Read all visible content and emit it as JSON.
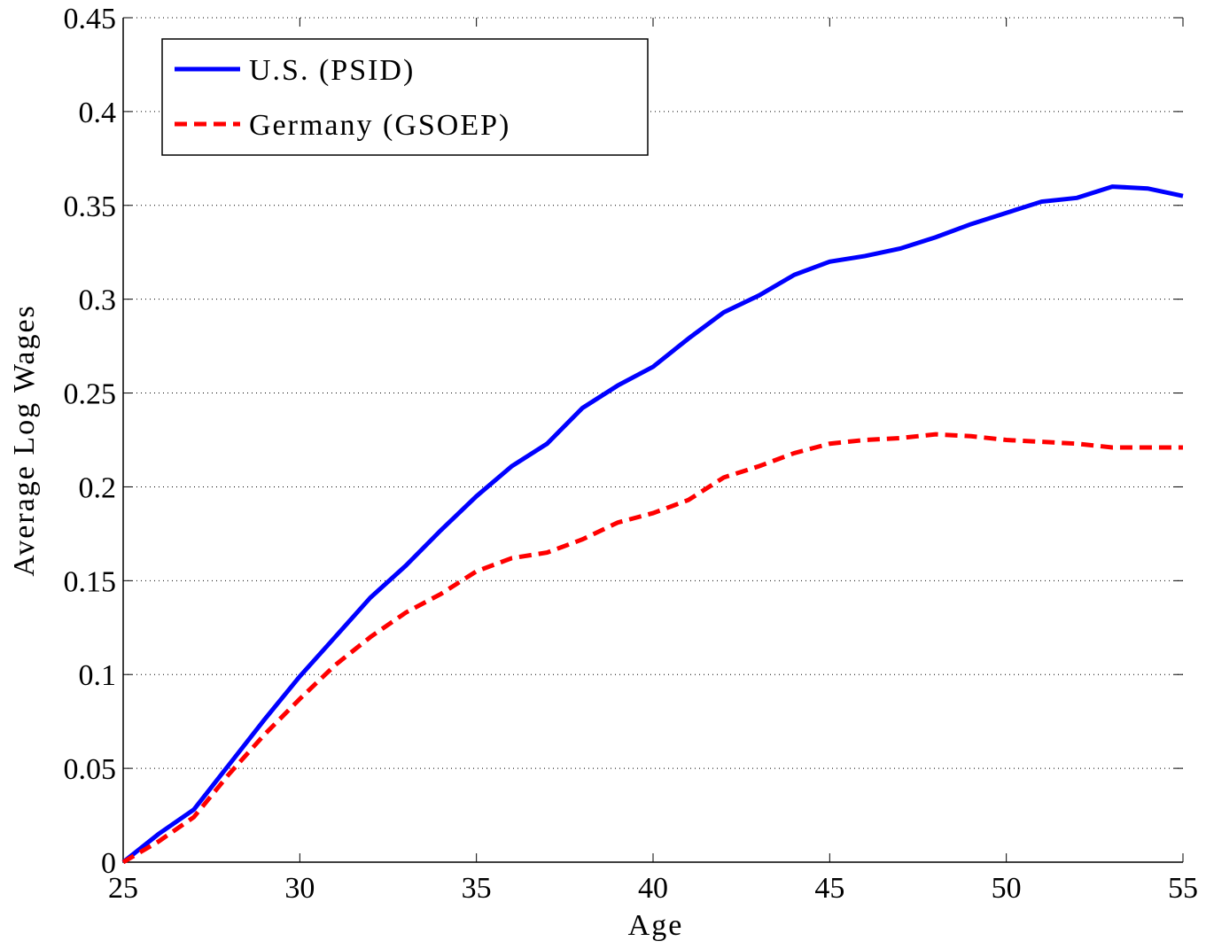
{
  "chart_data": {
    "type": "line",
    "x_label": "Age",
    "y_label": "Average Log Wages",
    "x": [
      25,
      26,
      27,
      28,
      29,
      30,
      31,
      32,
      33,
      34,
      35,
      36,
      37,
      38,
      39,
      40,
      41,
      42,
      43,
      44,
      45,
      46,
      47,
      48,
      49,
      50,
      51,
      52,
      53,
      54,
      55
    ],
    "series": [
      {
        "name": "U.S. (PSID)",
        "color": "#0000ff",
        "dash": "solid",
        "values": [
          0,
          0.015,
          0.028,
          0.052,
          0.076,
          0.099,
          0.12,
          0.141,
          0.158,
          0.177,
          0.195,
          0.211,
          0.223,
          0.242,
          0.254,
          0.264,
          0.279,
          0.293,
          0.302,
          0.313,
          0.32,
          0.323,
          0.327,
          0.333,
          0.34,
          0.346,
          0.352,
          0.354,
          0.36,
          0.359,
          0.355
        ]
      },
      {
        "name": "Germany (GSOEP)",
        "color": "#ff0000",
        "dash": "dashed",
        "values": [
          0,
          0.011,
          0.024,
          0.047,
          0.068,
          0.087,
          0.105,
          0.12,
          0.133,
          0.143,
          0.155,
          0.162,
          0.165,
          0.172,
          0.181,
          0.186,
          0.193,
          0.205,
          0.211,
          0.218,
          0.223,
          0.225,
          0.226,
          0.228,
          0.227,
          0.225,
          0.224,
          0.223,
          0.221,
          0.221,
          0.221
        ]
      }
    ],
    "xlim": [
      25,
      55
    ],
    "xticks": [
      25,
      30,
      35,
      40,
      45,
      50,
      55
    ],
    "ylim": [
      0,
      0.45
    ],
    "yticks": [
      0,
      0.05,
      0.1,
      0.15,
      0.2,
      0.25,
      0.3,
      0.35,
      0.4,
      0.45
    ],
    "grid": "y",
    "legend": "upper left"
  }
}
